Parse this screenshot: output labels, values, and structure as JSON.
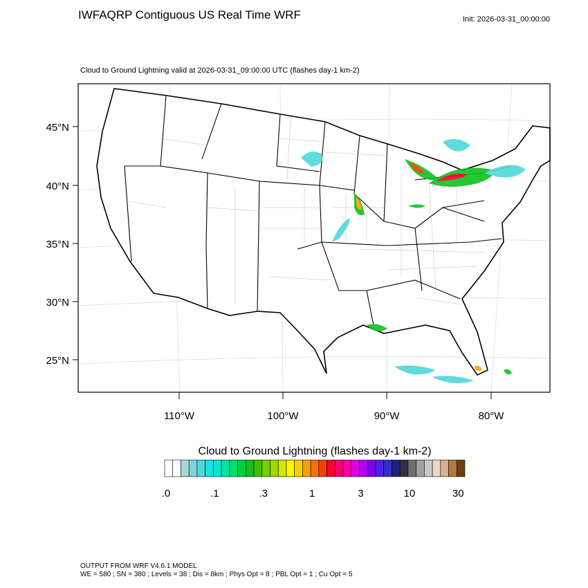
{
  "header": {
    "title": "IWFAQRP Contiguous US Real Time WRF",
    "init": "Init: 2026-03-31_00:00:00"
  },
  "map": {
    "subtitle": "Cloud to Ground Lightning valid at 2026-03-31_09:00:00 UTC   (flashes day-1 km-2)",
    "lat_labels": [
      "45°N",
      "40°N",
      "35°N",
      "30°N",
      "25°N"
    ],
    "lon_labels": [
      "110°W",
      "100°W",
      "90°W",
      "80°W"
    ]
  },
  "colorbar": {
    "title": "Cloud to Ground Lightning  (flashes day-1 km-2)",
    "labels": [
      ".0",
      ".1",
      ".3",
      "1",
      "3",
      "10",
      "30"
    ],
    "colors": [
      "#ffffff",
      "#ffffff",
      "#a6d8d8",
      "#7fd3d8",
      "#4fd8d8",
      "#1ee0e0",
      "#00e8d0",
      "#00e8a0",
      "#00e070",
      "#00d040",
      "#10c020",
      "#40c000",
      "#70d000",
      "#a0d800",
      "#d0e800",
      "#f8f800",
      "#f8d000",
      "#f8a000",
      "#f87000",
      "#f84000",
      "#f80030",
      "#f80070",
      "#f800a8",
      "#e000e0",
      "#b000f0",
      "#8000f0",
      "#5020e8",
      "#3030c8",
      "#202080",
      "#303040",
      "#707070",
      "#a0a0a0",
      "#c8c8c8",
      "#e8d8c8",
      "#d8b090",
      "#b07840",
      "#704010"
    ]
  },
  "footer": {
    "line1": "OUTPUT FROM WRF V4.6.1 MODEL",
    "line2": "WE = 580 ; SN = 380 ; Levels = 38 ; Dis = 8km ; Phys Opt = 8 ; PBL Opt = 1 ; Cu Opt = 5"
  }
}
